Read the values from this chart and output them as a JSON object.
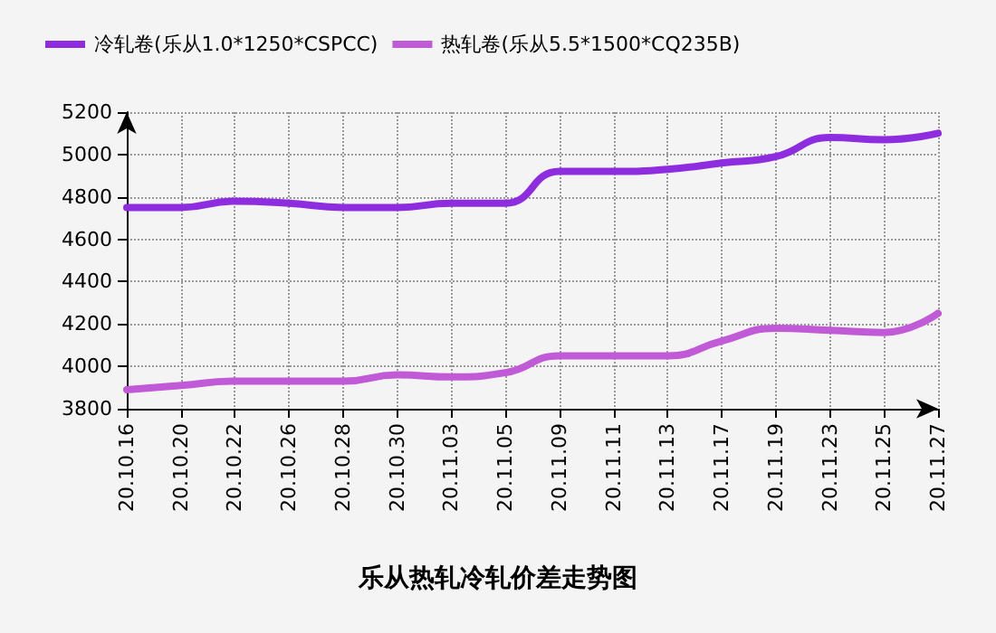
{
  "chart_data": {
    "type": "line",
    "title": "乐从热轧冷轧价差走势图",
    "categories": [
      "20.10.16",
      "20.10.20",
      "20.10.22",
      "20.10.26",
      "20.10.28",
      "20.10.30",
      "20.11.03",
      "20.11.05",
      "20.11.09",
      "20.11.11",
      "20.11.13",
      "20.11.17",
      "20.11.19",
      "20.11.23",
      "20.11.25",
      "20.11.27"
    ],
    "series": [
      {
        "name": "冷轧卷(乐从1.0*1250*CSPCC)",
        "color": "#8e2de0",
        "values": [
          4750,
          4750,
          4780,
          4770,
          4750,
          4750,
          4770,
          4770,
          4920,
          4920,
          4930,
          4960,
          4990,
          5080,
          5070,
          5100
        ]
      },
      {
        "name": "热轧卷(乐从5.5*1500*CQ235B)",
        "color": "#c05ad6",
        "values": [
          3890,
          3910,
          3930,
          3930,
          3930,
          3960,
          3950,
          3970,
          4050,
          4050,
          4050,
          4120,
          4180,
          4170,
          4160,
          4250
        ]
      }
    ],
    "ylim": [
      3800,
      5200
    ],
    "yticks": [
      3800,
      4000,
      4200,
      4400,
      4600,
      4800,
      5000,
      5200
    ],
    "grid": true,
    "legend": "top",
    "marker": "none",
    "line_style": "solid"
  }
}
